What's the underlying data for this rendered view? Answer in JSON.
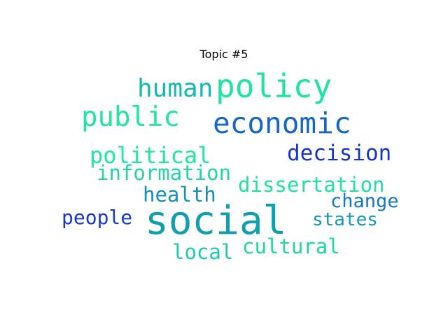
{
  "chart_data": {
    "type": "wordcloud",
    "title": "Topic #5",
    "words": [
      {
        "text": "social",
        "weight": 1.0,
        "color": "#0f9fb0"
      },
      {
        "text": "policy",
        "weight": 0.82,
        "color": "#1de3a3"
      },
      {
        "text": "economic",
        "weight": 0.74,
        "color": "#1467c8"
      },
      {
        "text": "public",
        "weight": 0.7,
        "color": "#1ee8a0"
      },
      {
        "text": "human",
        "weight": 0.65,
        "color": "#16b8b0"
      },
      {
        "text": "political",
        "weight": 0.58,
        "color": "#1fe5a5"
      },
      {
        "text": "decision",
        "weight": 0.55,
        "color": "#1535cc"
      },
      {
        "text": "information",
        "weight": 0.52,
        "color": "#1fd6a8"
      },
      {
        "text": "dissertation",
        "weight": 0.52,
        "color": "#20e0a3"
      },
      {
        "text": "health",
        "weight": 0.52,
        "color": "#1490bb"
      },
      {
        "text": "change",
        "weight": 0.48,
        "color": "#1278c6"
      },
      {
        "text": "people",
        "weight": 0.5,
        "color": "#1838d6"
      },
      {
        "text": "states",
        "weight": 0.46,
        "color": "#1498bd"
      },
      {
        "text": "cultural",
        "weight": 0.52,
        "color": "#1fd6a6"
      },
      {
        "text": "local",
        "weight": 0.52,
        "color": "#1cc9ac"
      }
    ]
  }
}
